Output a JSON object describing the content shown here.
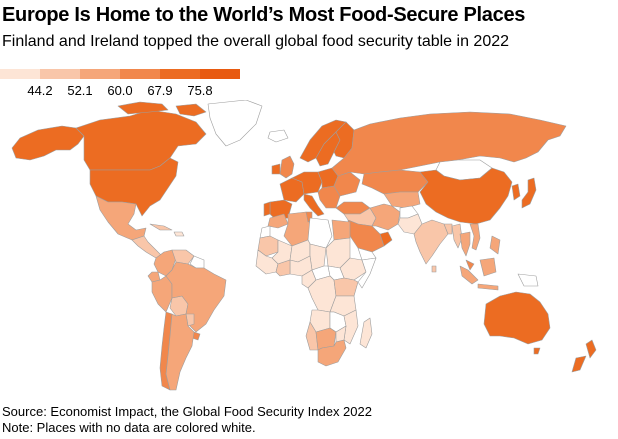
{
  "header": {
    "title": "Europe Is Home to the World’s Most Food-Secure Places",
    "subtitle": "Finland and Ireland topped the overall global food security table in 2022"
  },
  "legend": {
    "ticks": [
      "44.2",
      "52.1",
      "60.0",
      "67.9",
      "75.8"
    ],
    "colors": [
      "#fde5d6",
      "#f9c6a9",
      "#f5a679",
      "#f1874c",
      "#ec6c22",
      "#e85a10"
    ]
  },
  "map": {
    "no_data_color": "#ffffff",
    "border_color": "#9e9e9e"
  },
  "footer": {
    "source": "Source: Economist Impact, the Global Food Security Index 2022",
    "note": "Note: Places with no data are colored white."
  }
}
